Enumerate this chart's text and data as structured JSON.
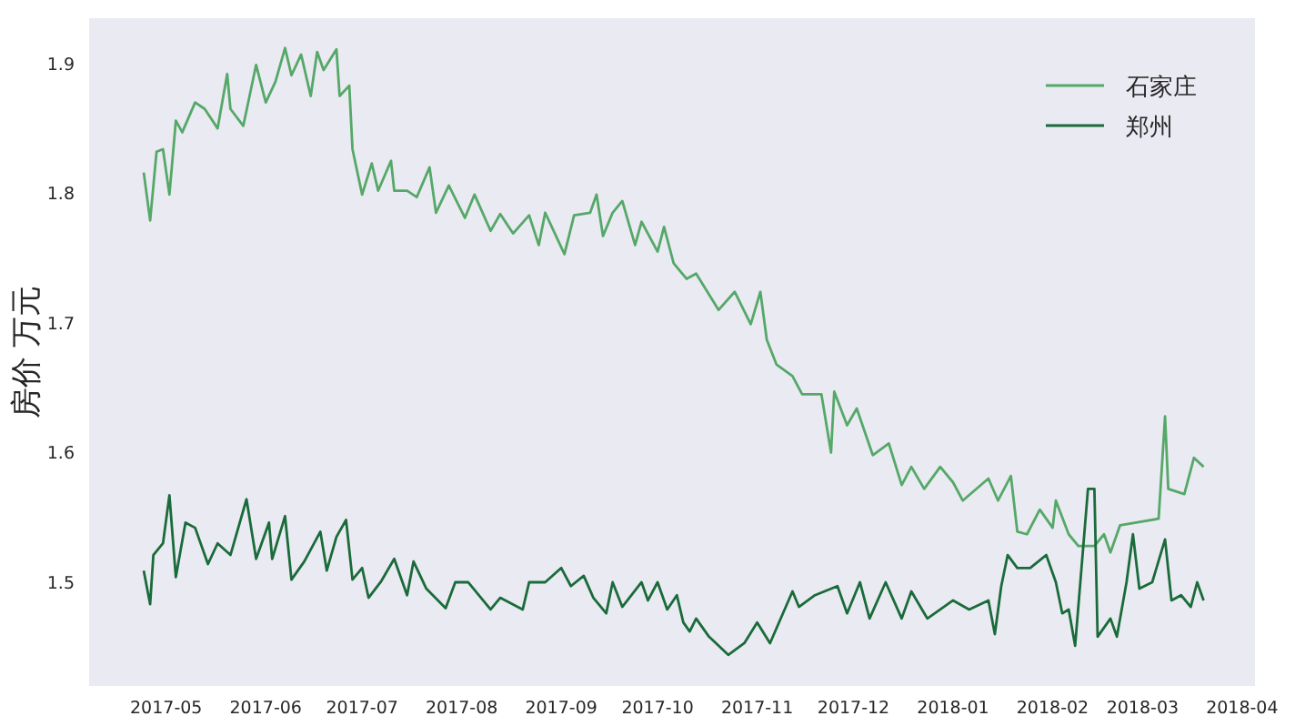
{
  "chart_data": {
    "type": "line",
    "ylabel": "房价 万元",
    "legend": "top right",
    "xlim": [
      "2017-04-07",
      "2018-04-05"
    ],
    "ylim": [
      1.42,
      1.935
    ],
    "xticks": [
      "2017-05",
      "2017-06",
      "2017-07",
      "2017-08",
      "2017-09",
      "2017-10",
      "2017-11",
      "2017-12",
      "2018-01",
      "2018-02",
      "2018-03",
      "2018-04"
    ],
    "yticks": [
      1.5,
      1.6,
      1.7,
      1.8,
      1.9
    ],
    "series": [
      {
        "name": "石家庄",
        "color": "#55a868",
        "x": [
          "2017-04-24",
          "2017-04-26",
          "2017-04-28",
          "2017-04-30",
          "2017-05-02",
          "2017-05-04",
          "2017-05-06",
          "2017-05-10",
          "2017-05-13",
          "2017-05-17",
          "2017-05-20",
          "2017-05-21",
          "2017-05-25",
          "2017-05-29",
          "2017-06-01",
          "2017-06-04",
          "2017-06-07",
          "2017-06-09",
          "2017-06-12",
          "2017-06-15",
          "2017-06-17",
          "2017-06-19",
          "2017-06-23",
          "2017-06-24",
          "2017-06-27",
          "2017-06-28",
          "2017-07-01",
          "2017-07-04",
          "2017-07-06",
          "2017-07-10",
          "2017-07-11",
          "2017-07-15",
          "2017-07-18",
          "2017-07-22",
          "2017-07-24",
          "2017-07-28",
          "2017-08-02",
          "2017-08-05",
          "2017-08-10",
          "2017-08-13",
          "2017-08-17",
          "2017-08-22",
          "2017-08-25",
          "2017-08-27",
          "2017-09-02",
          "2017-09-05",
          "2017-09-10",
          "2017-09-12",
          "2017-09-14",
          "2017-09-17",
          "2017-09-20",
          "2017-09-24",
          "2017-09-26",
          "2017-10-01",
          "2017-10-03",
          "2017-10-06",
          "2017-10-10",
          "2017-10-13",
          "2017-10-20",
          "2017-10-25",
          "2017-10-30",
          "2017-11-02",
          "2017-11-04",
          "2017-11-07",
          "2017-11-12",
          "2017-11-15",
          "2017-11-21",
          "2017-11-24",
          "2017-11-25",
          "2017-11-29",
          "2017-12-02",
          "2017-12-07",
          "2017-12-12",
          "2017-12-16",
          "2017-12-19",
          "2017-12-23",
          "2017-12-28",
          "2018-01-01",
          "2018-01-04",
          "2018-01-12",
          "2018-01-15",
          "2018-01-19",
          "2018-01-21",
          "2018-01-24",
          "2018-01-28",
          "2018-02-01",
          "2018-02-02",
          "2018-02-06",
          "2018-02-09",
          "2018-02-14",
          "2018-02-17",
          "2018-02-19",
          "2018-02-22",
          "2018-02-27",
          "2018-03-06",
          "2018-03-08",
          "2018-03-09",
          "2018-03-14",
          "2018-03-17",
          "2018-03-20"
        ],
        "values": [
          1.816,
          1.779,
          1.832,
          1.834,
          1.799,
          1.856,
          1.847,
          1.87,
          1.865,
          1.85,
          1.892,
          1.865,
          1.852,
          1.899,
          1.87,
          1.886,
          1.912,
          1.891,
          1.907,
          1.875,
          1.909,
          1.895,
          1.911,
          1.875,
          1.883,
          1.834,
          1.799,
          1.823,
          1.802,
          1.825,
          1.802,
          1.802,
          1.797,
          1.82,
          1.785,
          1.806,
          1.781,
          1.799,
          1.771,
          1.784,
          1.769,
          1.783,
          1.76,
          1.785,
          1.753,
          1.783,
          1.785,
          1.799,
          1.767,
          1.785,
          1.794,
          1.76,
          1.778,
          1.755,
          1.774,
          1.746,
          1.734,
          1.738,
          1.71,
          1.724,
          1.699,
          1.724,
          1.687,
          1.668,
          1.659,
          1.645,
          1.645,
          1.6,
          1.647,
          1.621,
          1.634,
          1.598,
          1.607,
          1.575,
          1.589,
          1.572,
          1.589,
          1.577,
          1.563,
          1.58,
          1.563,
          1.582,
          1.539,
          1.537,
          1.556,
          1.542,
          1.563,
          1.537,
          1.528,
          1.528,
          1.537,
          1.523,
          1.544,
          1.546,
          1.549,
          1.628,
          1.572,
          1.568,
          1.596,
          1.589
        ]
      },
      {
        "name": "郑州",
        "color": "#1a6b3a",
        "x": [
          "2017-04-24",
          "2017-04-26",
          "2017-04-27",
          "2017-04-30",
          "2017-05-02",
          "2017-05-04",
          "2017-05-07",
          "2017-05-10",
          "2017-05-14",
          "2017-05-17",
          "2017-05-21",
          "2017-05-26",
          "2017-05-29",
          "2017-06-02",
          "2017-06-03",
          "2017-06-07",
          "2017-06-09",
          "2017-06-13",
          "2017-06-18",
          "2017-06-20",
          "2017-06-23",
          "2017-06-26",
          "2017-06-28",
          "2017-07-01",
          "2017-07-03",
          "2017-07-07",
          "2017-07-11",
          "2017-07-15",
          "2017-07-17",
          "2017-07-21",
          "2017-07-27",
          "2017-07-30",
          "2017-08-03",
          "2017-08-10",
          "2017-08-13",
          "2017-08-20",
          "2017-08-22",
          "2017-08-27",
          "2017-09-01",
          "2017-09-04",
          "2017-09-08",
          "2017-09-11",
          "2017-09-15",
          "2017-09-17",
          "2017-09-20",
          "2017-09-26",
          "2017-09-28",
          "2017-10-01",
          "2017-10-04",
          "2017-10-07",
          "2017-10-09",
          "2017-10-11",
          "2017-10-13",
          "2017-10-17",
          "2017-10-23",
          "2017-10-28",
          "2017-11-01",
          "2017-11-05",
          "2017-11-12",
          "2017-11-14",
          "2017-11-19",
          "2017-11-26",
          "2017-11-29",
          "2017-12-03",
          "2017-12-06",
          "2017-12-11",
          "2017-12-16",
          "2017-12-19",
          "2017-12-24",
          "2018-01-01",
          "2018-01-06",
          "2018-01-12",
          "2018-01-14",
          "2018-01-16",
          "2018-01-18",
          "2018-01-21",
          "2018-01-25",
          "2018-01-30",
          "2018-02-02",
          "2018-02-04",
          "2018-02-06",
          "2018-02-08",
          "2018-02-12",
          "2018-02-14",
          "2018-02-15",
          "2018-02-19",
          "2018-02-21",
          "2018-02-24",
          "2018-02-26",
          "2018-02-28",
          "2018-03-04",
          "2018-03-08",
          "2018-03-10",
          "2018-03-13",
          "2018-03-16",
          "2018-03-18",
          "2018-03-20"
        ],
        "values": [
          1.509,
          1.483,
          1.521,
          1.53,
          1.567,
          1.504,
          1.546,
          1.542,
          1.514,
          1.53,
          1.521,
          1.564,
          1.518,
          1.546,
          1.518,
          1.551,
          1.502,
          1.516,
          1.539,
          1.509,
          1.535,
          1.548,
          1.502,
          1.511,
          1.488,
          1.501,
          1.518,
          1.49,
          1.516,
          1.495,
          1.48,
          1.5,
          1.5,
          1.479,
          1.488,
          1.479,
          1.5,
          1.5,
          1.511,
          1.497,
          1.505,
          1.488,
          1.476,
          1.5,
          1.481,
          1.5,
          1.486,
          1.5,
          1.479,
          1.49,
          1.469,
          1.462,
          1.472,
          1.458,
          1.444,
          1.453,
          1.469,
          1.453,
          1.493,
          1.481,
          1.49,
          1.497,
          1.476,
          1.5,
          1.472,
          1.5,
          1.472,
          1.493,
          1.472,
          1.486,
          1.479,
          1.486,
          1.46,
          1.497,
          1.521,
          1.511,
          1.511,
          1.521,
          1.5,
          1.476,
          1.479,
          1.451,
          1.572,
          1.572,
          1.458,
          1.472,
          1.458,
          1.5,
          1.537,
          1.495,
          1.5,
          1.533,
          1.486,
          1.49,
          1.481,
          1.5,
          1.486
        ]
      }
    ]
  }
}
